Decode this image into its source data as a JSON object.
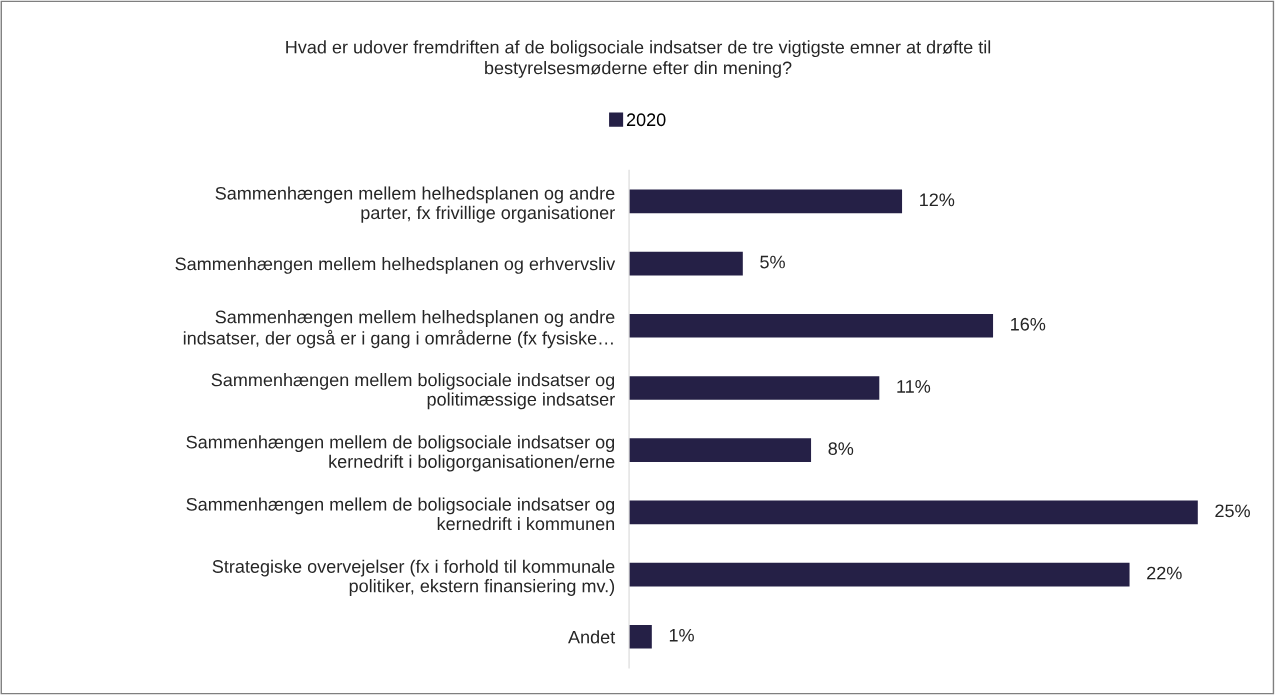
{
  "chart_data": {
    "type": "bar",
    "orientation": "horizontal",
    "title": "Hvad er udover fremdriften af de boligsociale indsatser de tre vigtigste emner at drøfte til\nbestyrelsesmøderne efter din mening?",
    "categories": [
      "Sammenhængen mellem helhedsplanen og andre\nparter, fx frivillige organisationer",
      "Sammenhængen mellem helhedsplanen og erhvervsliv",
      "Sammenhængen mellem helhedsplanen og andre\nindsatser, der også er i gang i områderne (fx fysiske…",
      "Sammenhængen mellem boligsociale indsatser og\npolitimæssige indsatser",
      "Sammenhængen mellem de boligsociale indsatser og\nkernedrift i boligorganisationen/erne",
      "Sammenhængen mellem de boligsociale indsatser og\nkernedrift i kommunen",
      "Strategiske overvejelser (fx i forhold til kommunale\npolitiker, ekstern finansiering mv.)",
      "Andet"
    ],
    "series": [
      {
        "name": "2020",
        "color": "#252046",
        "values": [
          12,
          5,
          16,
          11,
          8,
          25,
          22,
          1
        ],
        "value_labels": [
          "12%",
          "5%",
          "16%",
          "11%",
          "8%",
          "25%",
          "22%",
          "1%"
        ]
      }
    ],
    "tick_labels": "y",
    "grid": false,
    "legend": "top"
  }
}
